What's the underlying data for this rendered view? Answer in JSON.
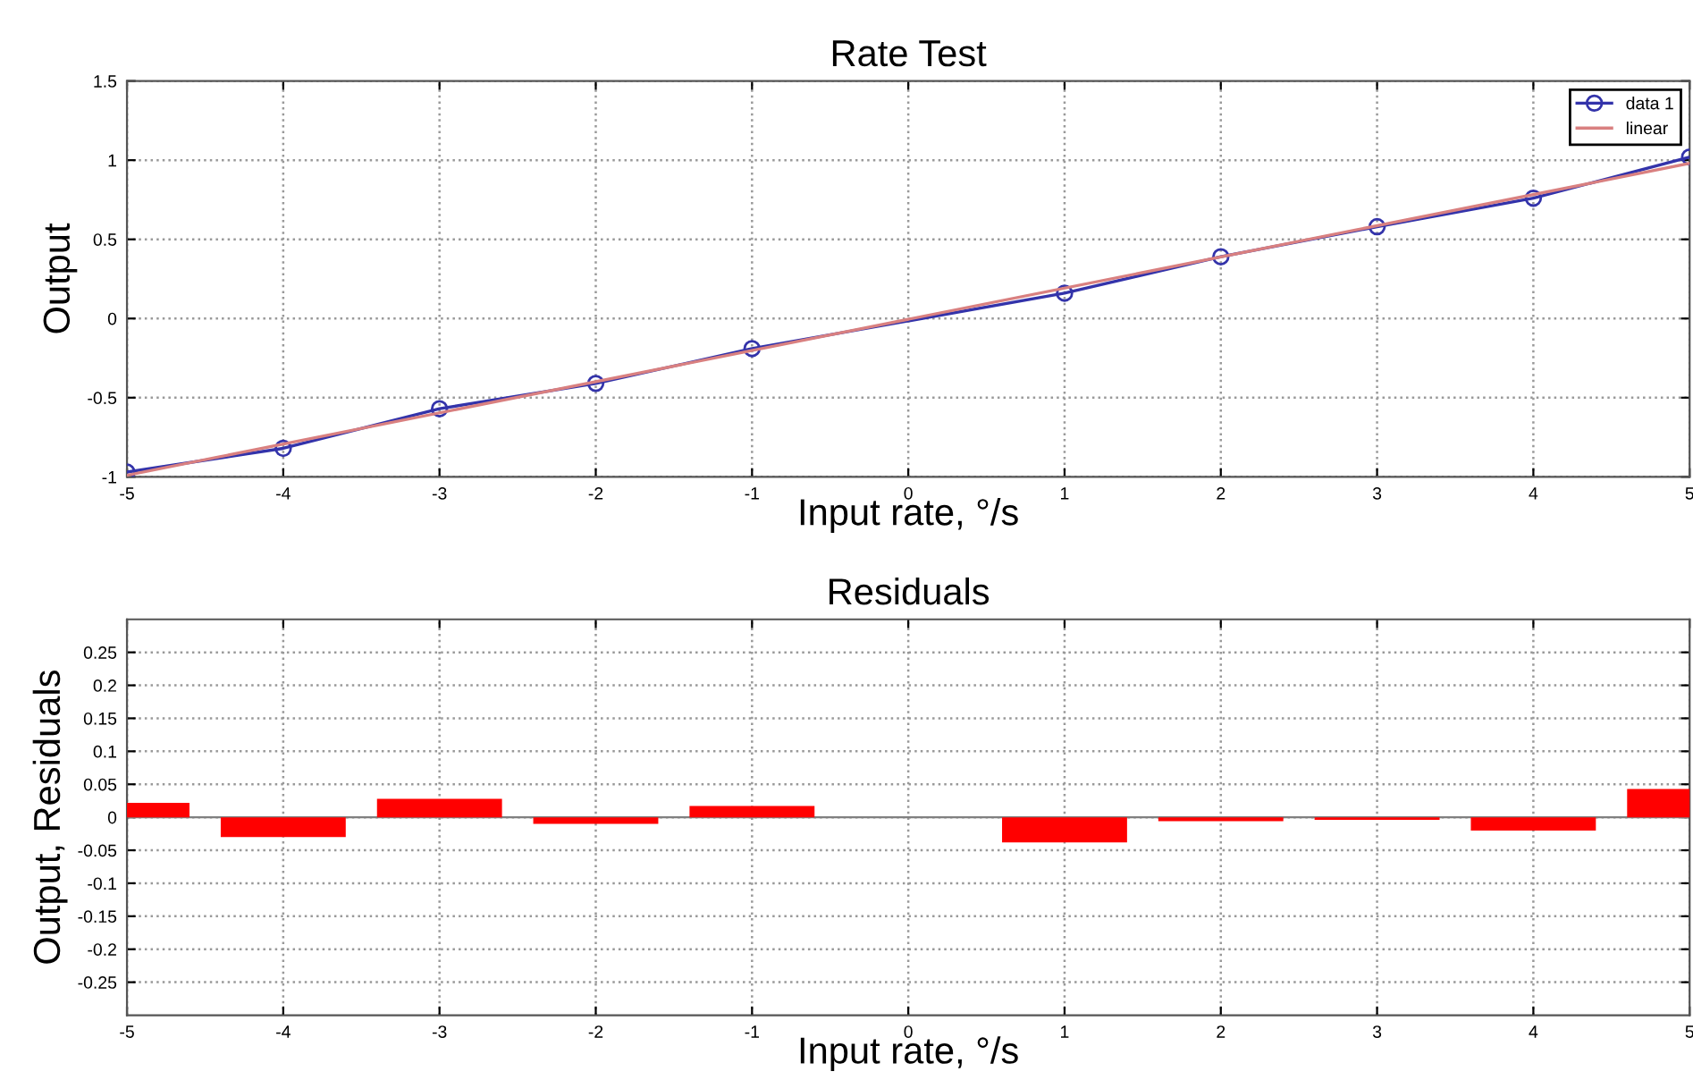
{
  "chart_data": [
    {
      "type": "line",
      "title": "Rate Test",
      "xlabel": "Input rate, °/s",
      "ylabel": "Output",
      "xlim": [
        -5,
        5
      ],
      "xticks": [
        -5,
        -4,
        -3,
        -2,
        -1,
        0,
        1,
        2,
        3,
        4,
        5
      ],
      "ylim": [
        -1,
        1.5
      ],
      "yticks": [
        -1,
        -0.5,
        0,
        0.5,
        1,
        1.5
      ],
      "grid": true,
      "legend": "top right",
      "series": [
        {
          "name": "data 1",
          "color": "#3333aa",
          "marker": "circle",
          "x": [
            -5,
            -4,
            -3,
            -2,
            -1,
            1,
            2,
            3,
            4,
            5
          ],
          "values": [
            -0.97,
            -0.82,
            -0.57,
            -0.41,
            -0.19,
            0.16,
            0.39,
            0.58,
            0.76,
            1.02
          ]
        },
        {
          "name": "linear",
          "color": "#d98080",
          "marker": "none",
          "x": [
            -5,
            5
          ],
          "values": [
            -0.99,
            0.98
          ]
        }
      ]
    },
    {
      "type": "bar",
      "title": "Residuals",
      "xlabel": "Input rate, °/s",
      "ylabel": "Output, Residuals",
      "xlim": [
        -5,
        5
      ],
      "xticks": [
        -5,
        -4,
        -3,
        -2,
        -1,
        0,
        1,
        2,
        3,
        4,
        5
      ],
      "ylim": [
        -0.3,
        0.3
      ],
      "yticks": [
        -0.25,
        -0.2,
        -0.15,
        -0.1,
        -0.05,
        0,
        0.05,
        0.1,
        0.15,
        0.2,
        0.25
      ],
      "grid": true,
      "ref_lines": [
        {
          "axis": "y",
          "value": 0,
          "color": "#808080"
        }
      ],
      "series": [
        {
          "color": "#ff0000",
          "x": [
            -5,
            -4,
            -3,
            -2,
            -1,
            1,
            2,
            3,
            4,
            5
          ],
          "values": [
            0.022,
            -0.03,
            0.028,
            -0.01,
            0.017,
            -0.038,
            -0.006,
            -0.004,
            -0.02,
            0.043
          ]
        }
      ]
    }
  ]
}
